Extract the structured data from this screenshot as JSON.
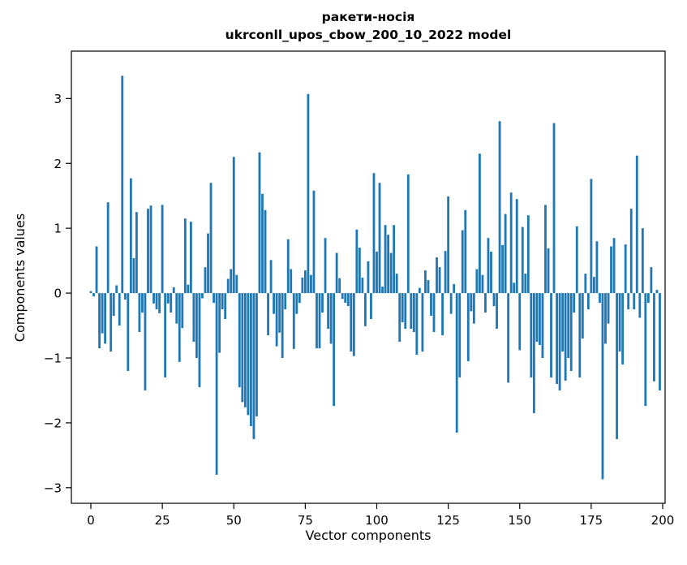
{
  "page": {
    "background": "#ffffff"
  },
  "chart_data": {
    "type": "bar",
    "title_line1": "ракети-носія",
    "title_line2": "ukrconll_upos_cbow_200_10_2022 model",
    "xlabel": "Vector components",
    "ylabel": "Components values",
    "bar_color": "#1f77b4",
    "axis_color": "#000000",
    "x_tick_labels": [
      0,
      25,
      50,
      75,
      100,
      125,
      150,
      175,
      200
    ],
    "y_tick_labels": [
      -3,
      -2,
      -1,
      0,
      1,
      2,
      3
    ],
    "xlim": [
      -6.81,
      200.85
    ],
    "ylim": [
      -3.24,
      3.73
    ],
    "n_components": 200,
    "bar_width": 0.8,
    "grid": false,
    "legend": null,
    "values": [
      0.03,
      -0.05,
      0.72,
      -0.85,
      -0.62,
      -0.78,
      1.4,
      -0.9,
      -0.35,
      0.12,
      -0.5,
      3.35,
      -0.1,
      -1.2,
      1.77,
      0.54,
      1.25,
      -0.6,
      -0.3,
      -1.5,
      1.3,
      1.35,
      -0.16,
      -0.25,
      -0.31,
      1.36,
      -1.3,
      -0.16,
      -0.3,
      0.09,
      -0.47,
      -1.06,
      -0.54,
      1.15,
      0.13,
      1.1,
      -0.75,
      -1.0,
      -1.45,
      -0.08,
      0.4,
      0.92,
      1.7,
      -0.15,
      -2.8,
      -0.92,
      -0.25,
      -0.4,
      0.22,
      0.37,
      2.1,
      0.28,
      -1.45,
      -1.68,
      -1.76,
      -1.88,
      -2.05,
      -2.25,
      -1.9,
      2.17,
      1.53,
      1.28,
      -0.65,
      0.51,
      -0.32,
      -0.82,
      -0.61,
      -1.0,
      -0.25,
      0.83,
      0.37,
      -0.86,
      -0.32,
      -0.15,
      0.24,
      0.35,
      3.07,
      0.28,
      1.58,
      -0.85,
      -0.85,
      -0.3,
      0.85,
      -0.55,
      -0.78,
      -1.74,
      0.62,
      0.23,
      -0.09,
      -0.15,
      -0.2,
      -0.9,
      -0.97,
      0.98,
      0.7,
      0.24,
      -0.51,
      0.49,
      -0.4,
      1.85,
      0.64,
      1.7,
      0.1,
      1.05,
      0.9,
      0.62,
      1.05,
      0.3,
      -0.75,
      -0.45,
      -0.55,
      1.83,
      -0.55,
      -0.6,
      -0.95,
      0.08,
      -0.9,
      0.35,
      0.2,
      -0.35,
      -0.6,
      0.55,
      0.4,
      -0.65,
      0.65,
      1.49,
      -0.32,
      0.14,
      -2.15,
      -1.3,
      0.97,
      1.28,
      -1.05,
      -0.28,
      -0.47,
      0.37,
      2.15,
      0.28,
      -0.3,
      0.85,
      0.64,
      -0.2,
      -0.55,
      2.65,
      0.74,
      1.22,
      -1.38,
      1.55,
      0.16,
      1.45,
      -0.88,
      1.02,
      0.3,
      1.2,
      -1.3,
      -1.85,
      -0.75,
      -0.8,
      -1.0,
      1.36,
      0.69,
      -1.3,
      2.62,
      -1.4,
      -1.5,
      -0.9,
      -1.35,
      -1.0,
      -1.2,
      -0.3,
      1.03,
      -1.3,
      -0.7,
      0.3,
      -0.25,
      1.76,
      0.25,
      0.8,
      -0.15,
      -2.87,
      -0.78,
      -0.47,
      0.72,
      0.85,
      -2.25,
      -0.9,
      -1.1,
      0.75,
      -0.25,
      1.3,
      -0.25,
      2.12,
      -0.38,
      1.0,
      -1.74,
      -0.15,
      0.4,
      -1.36,
      0.05,
      -1.5
    ]
  }
}
